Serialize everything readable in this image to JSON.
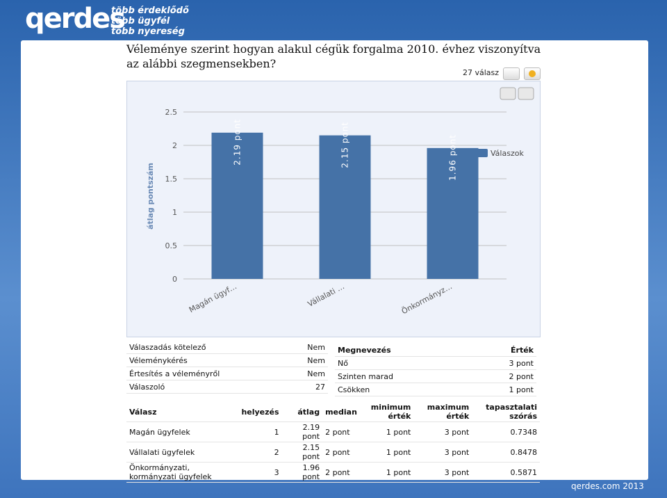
{
  "header": {
    "logo": "qerdes",
    "slogan": [
      "több érdeklődő",
      "több ügyfél",
      "több nyereség"
    ]
  },
  "question": "Véleménye szerint hogyan alakul cégük forgalma 2010. évhez viszonyítva az alábbi szegmensekben?",
  "response_count": "27 válasz",
  "chart_data": {
    "type": "bar",
    "y_label": "átlag pontszám",
    "categories": [
      "Magán ügyf…",
      "Vállalati …",
      "Önkormányz…"
    ],
    "series": [
      {
        "name": "Válaszok",
        "color": "#4572a7",
        "values": [
          2.19,
          2.15,
          1.96
        ],
        "value_labels": [
          "2.19 pont",
          "2.15 pont",
          "1.96 pont"
        ]
      }
    ],
    "ylim": [
      0,
      2.5
    ],
    "yticks": [
      0,
      0.5,
      1,
      1.5,
      2,
      2.5
    ],
    "grid": true,
    "legend": "right"
  },
  "settings_table": {
    "rows": [
      [
        "Válaszadás kötelező",
        "Nem"
      ],
      [
        "Véleménykérés",
        "Nem"
      ],
      [
        "Értesítés a véleményről",
        "Nem"
      ],
      [
        "Válaszoló",
        "27"
      ]
    ]
  },
  "values_table": {
    "header": [
      "Megnevezés",
      "Érték"
    ],
    "rows": [
      [
        "Nő",
        "3 pont"
      ],
      [
        "Szinten marad",
        "2 pont"
      ],
      [
        "Csökken",
        "1 pont"
      ]
    ]
  },
  "stats_table": {
    "header": [
      "Válasz",
      "helyezés",
      "átlag",
      "median",
      "minimum érték",
      "maximum érték",
      "tapasztalati szórás"
    ],
    "rows": [
      [
        "Magán ügyfelek",
        "1",
        "2.19 pont",
        "2 pont",
        "1 pont",
        "3 pont",
        "0.7348"
      ],
      [
        "Vállalati ügyfelek",
        "2",
        "2.15 pont",
        "2 pont",
        "1 pont",
        "3 pont",
        "0.8478"
      ],
      [
        "Önkormányzati, kormányzati ügyfelek",
        "3",
        "1.96 pont",
        "2 pont",
        "1 pont",
        "3 pont",
        "0.5871"
      ]
    ]
  },
  "footer": "qerdes.com 2013"
}
